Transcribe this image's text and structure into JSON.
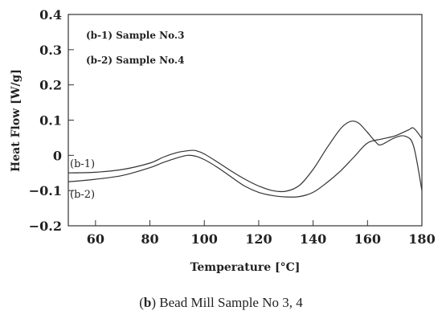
{
  "chart_data": {
    "type": "line",
    "xlabel": "Temperature [°C]",
    "ylabel": "Heat Flow [W/g]",
    "xlim": [
      50,
      180
    ],
    "ylim": [
      -0.2,
      0.4
    ],
    "xticks": [
      60,
      80,
      100,
      120,
      140,
      160,
      180
    ],
    "yticks": [
      0.4,
      0.3,
      0.2,
      0.1,
      0,
      -0.1,
      -0.2
    ],
    "ytick_labels": [
      "0.4",
      "0.3",
      "0.2",
      "0.1",
      "0",
      "−0.1",
      "−0.2"
    ],
    "legend_text": [
      "(b-1) Sample No.3",
      "(b-2) Sample No.4"
    ],
    "grid": false,
    "series": [
      {
        "name": "(b-1)",
        "x": [
          50,
          60,
          70,
          80,
          85,
          90,
          95,
          97,
          100,
          105,
          110,
          115,
          120,
          125,
          130,
          135,
          140,
          145,
          150,
          153,
          155,
          157,
          160,
          163,
          165,
          170,
          174,
          177,
          180
        ],
        "y": [
          -0.05,
          -0.048,
          -0.04,
          -0.022,
          -0.005,
          0.008,
          0.014,
          0.013,
          0.004,
          -0.02,
          -0.045,
          -0.068,
          -0.087,
          -0.1,
          -0.102,
          -0.085,
          -0.04,
          0.02,
          0.075,
          0.094,
          0.097,
          0.09,
          0.065,
          0.038,
          0.03,
          0.05,
          0.054,
          0.025,
          -0.1
        ]
      },
      {
        "name": "(b-2)",
        "x": [
          50,
          60,
          70,
          80,
          85,
          90,
          94,
          97,
          100,
          105,
          110,
          115,
          120,
          125,
          130,
          135,
          140,
          145,
          150,
          155,
          160,
          165,
          170,
          175,
          177,
          180
        ],
        "y": [
          -0.075,
          -0.068,
          -0.057,
          -0.035,
          -0.02,
          -0.007,
          0.0,
          -0.003,
          -0.012,
          -0.035,
          -0.062,
          -0.088,
          -0.105,
          -0.114,
          -0.118,
          -0.117,
          -0.105,
          -0.078,
          -0.045,
          -0.005,
          0.035,
          0.046,
          0.055,
          0.072,
          0.077,
          0.048
        ]
      }
    ]
  },
  "caption": {
    "open": "(",
    "letter": "b",
    "rest": ") Bead Mill Sample No 3, 4"
  }
}
